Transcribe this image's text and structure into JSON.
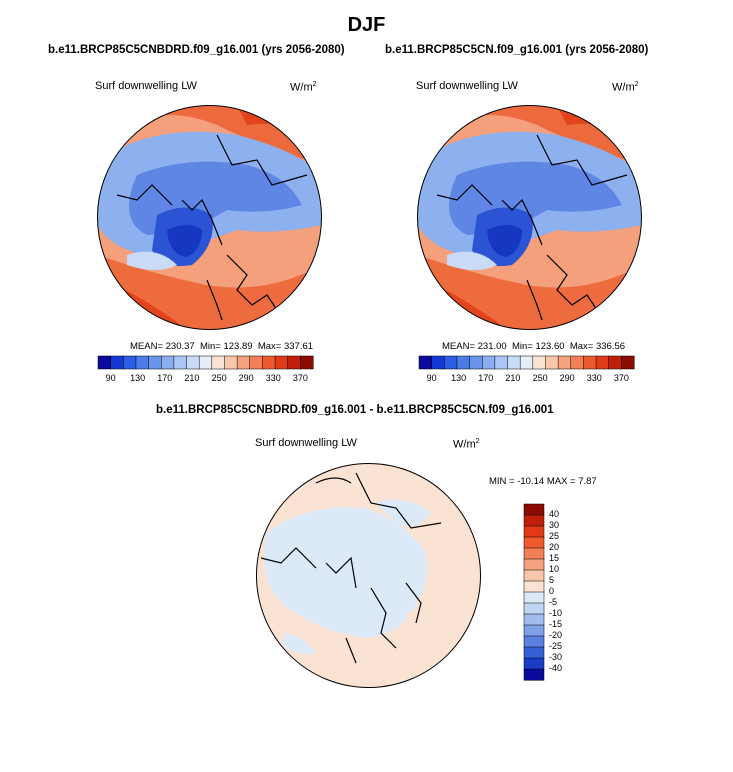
{
  "figure": {
    "title": "DJF"
  },
  "panels": [
    {
      "title": "b.e11.BRCP85C5CNBDRD.f09_g16.001 (yrs 2056-2080)",
      "variable": "Surf downwelling LW",
      "units": "W/m",
      "units_sup": "2",
      "mean_label": "MEAN=",
      "mean": "230.37",
      "min_label": "Min=",
      "min": "123.89",
      "max_label": "Max=",
      "max": "337.61"
    },
    {
      "title": "b.e11.BRCP85C5CN.f09_g16.001 (yrs 2056-2080)",
      "variable": "Surf downwelling LW",
      "units": "W/m",
      "units_sup": "2",
      "mean_label": "MEAN=",
      "mean": "231.00",
      "min_label": "Min=",
      "min": "123.60",
      "max_label": "Max=",
      "max": "336.56"
    }
  ],
  "diff_panel": {
    "title": "b.e11.BRCP85C5CNBDRD.f09_g16.001 - b.e11.BRCP85C5CN.f09_g16.001",
    "variable": "Surf downwelling LW",
    "units": "W/m",
    "units_sup": "2",
    "stats": "MIN = -10.14 MAX =   7.87"
  },
  "chart_data": [
    {
      "type": "heatmap",
      "projection": "north-polar-stereographic",
      "title": "b.e11.BRCP85C5CNBDRD.f09_g16.001 (yrs 2056-2080)",
      "variable": "Surf downwelling LW (W/m2)",
      "mean": 230.37,
      "min": 123.89,
      "max": 337.61,
      "colorbar_ticks": [
        90,
        130,
        170,
        210,
        250,
        290,
        330,
        370
      ],
      "colorbar_colors": [
        "#0a0a9c",
        "#1537d4",
        "#2a5ee6",
        "#4a7de6",
        "#6a96ea",
        "#8aaef0",
        "#aac6f4",
        "#c8dcf8",
        "#e6eef8",
        "#fbe3d4",
        "#f8c6a8",
        "#f5a37c",
        "#f27f55",
        "#ec5a2e",
        "#e03a16",
        "#c0200a",
        "#8c0c04"
      ]
    },
    {
      "type": "heatmap",
      "projection": "north-polar-stereographic",
      "title": "b.e11.BRCP85C5CN.f09_g16.001 (yrs 2056-2080)",
      "variable": "Surf downwelling LW (W/m2)",
      "mean": 231.0,
      "min": 123.6,
      "max": 336.56,
      "colorbar_ticks": [
        90,
        130,
        170,
        210,
        250,
        290,
        330,
        370
      ],
      "colorbar_colors": [
        "#0a0a9c",
        "#1537d4",
        "#2a5ee6",
        "#4a7de6",
        "#6a96ea",
        "#8aaef0",
        "#aac6f4",
        "#c8dcf8",
        "#e6eef8",
        "#fbe3d4",
        "#f8c6a8",
        "#f5a37c",
        "#f27f55",
        "#ec5a2e",
        "#e03a16",
        "#c0200a",
        "#8c0c04"
      ]
    },
    {
      "type": "heatmap",
      "projection": "north-polar-stereographic",
      "title": "b.e11.BRCP85C5CNBDRD.f09_g16.001 - b.e11.BRCP85C5CN.f09_g16.001",
      "variable": "Surf downwelling LW (W/m2)",
      "min": -10.14,
      "max": 7.87,
      "colorbar_ticks": [
        "40",
        "30",
        "25",
        "20",
        "15",
        "10",
        "5",
        "0",
        "-5",
        "-10",
        "-15",
        "-20",
        "-25",
        "-30",
        "-40"
      ],
      "colorbar_colors": [
        "#8c0c04",
        "#c0200a",
        "#e03a16",
        "#f25a2e",
        "#f27f55",
        "#f5a37c",
        "#f8c6a8",
        "#fbe3d4",
        "#dce9f8",
        "#c1d6f3",
        "#a0bdee",
        "#7fa1e8",
        "#5a80e0",
        "#3560d6",
        "#1a3cc4",
        "#0a0a9c"
      ]
    }
  ]
}
